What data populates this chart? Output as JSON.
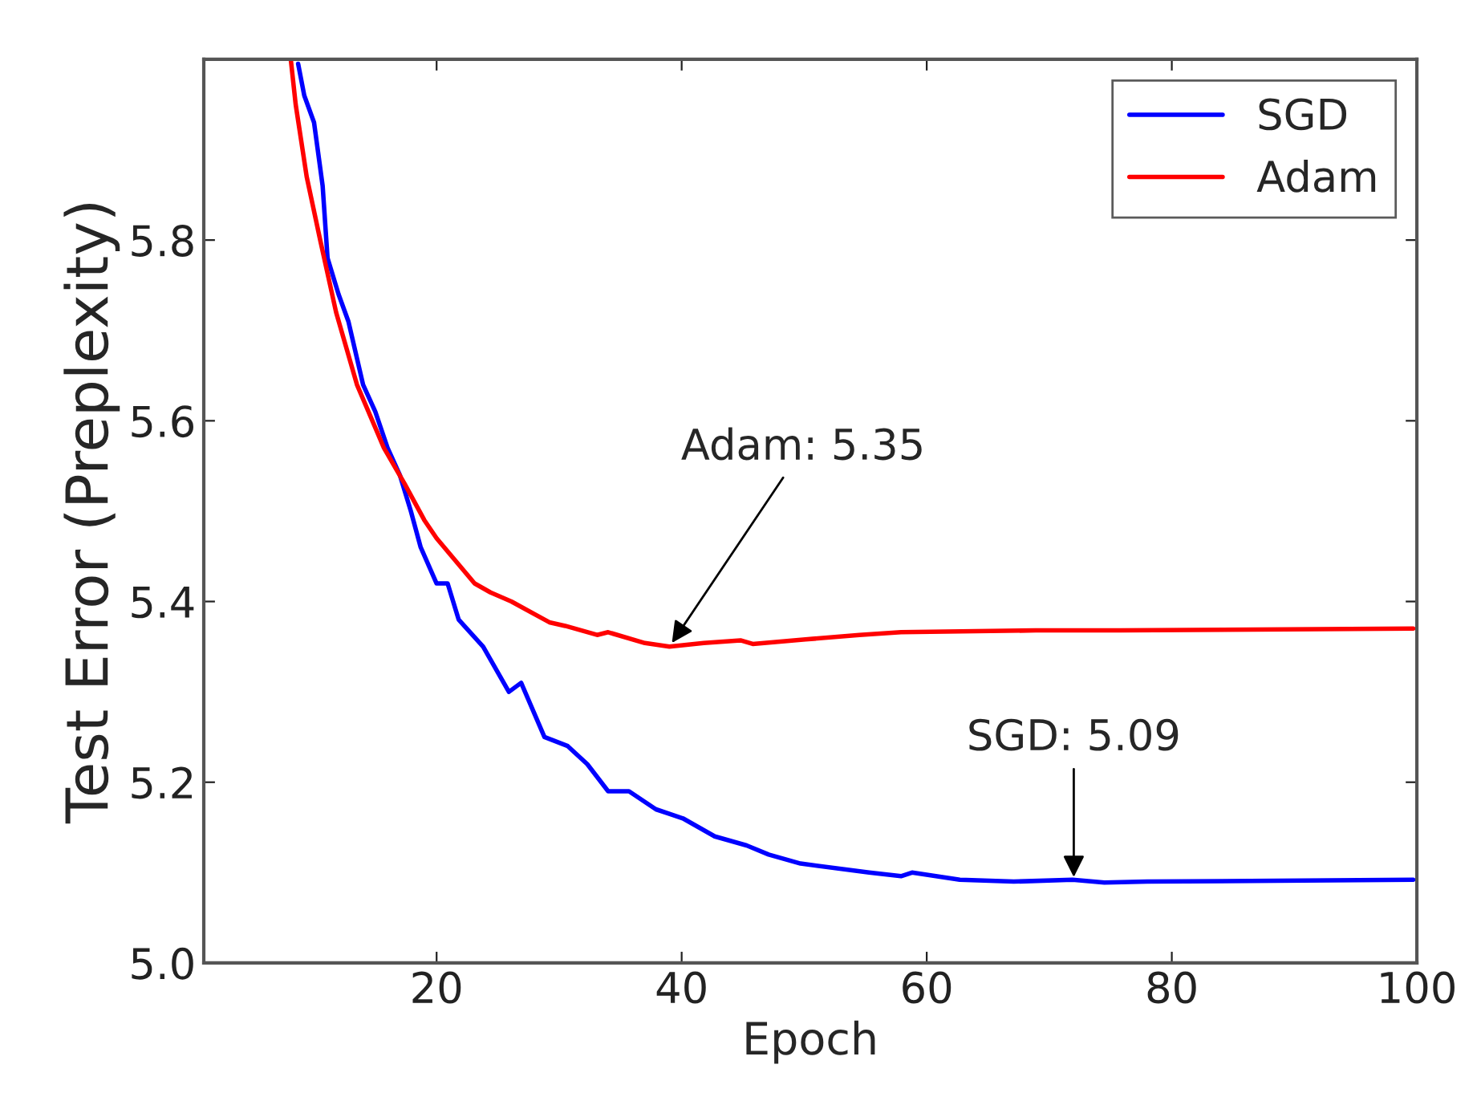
{
  "chart_data": {
    "type": "line",
    "xlabel": "Epoch",
    "ylabel": "Test Error (Preplexity)",
    "xlim": [
      1,
      100
    ],
    "xticks": [
      20,
      40,
      60,
      80,
      100
    ],
    "ylim": [
      5.0,
      6.0
    ],
    "yticks": [
      {
        "value": 5.0,
        "label": "5.0"
      },
      {
        "value": 5.2,
        "label": "5.2"
      },
      {
        "value": 5.4,
        "label": "5.4"
      },
      {
        "value": 5.6,
        "label": "5.6"
      },
      {
        "value": 5.8,
        "label": "5.8"
      }
    ],
    "grid": false,
    "legend": "top right",
    "marker": "none",
    "line_style": "solid",
    "series": [
      {
        "name": "SGD",
        "color": "#0000ff",
        "x": [
          8.7,
          9.2,
          10.0,
          10.7,
          11.1,
          12.0,
          12.8,
          14.0,
          15.0,
          16.0,
          17.0,
          17.9,
          18.7,
          20.0,
          20.9,
          21.8,
          23.8,
          25.9,
          26.9,
          28.8,
          30.7,
          32.3,
          34.0,
          35.7,
          37.9,
          40.1,
          42.7,
          45.3,
          47.1,
          49.7,
          55.3,
          57.9,
          58.8,
          62.7,
          67.1,
          71.9,
          74.5,
          78.0,
          99.7
        ],
        "values": [
          5.995,
          5.96,
          5.93,
          5.86,
          5.78,
          5.74,
          5.71,
          5.64,
          5.61,
          5.57,
          5.54,
          5.5,
          5.46,
          5.42,
          5.42,
          5.38,
          5.35,
          5.3,
          5.31,
          5.25,
          5.24,
          5.22,
          5.19,
          5.19,
          5.17,
          5.16,
          5.14,
          5.13,
          5.12,
          5.11,
          5.1,
          5.096,
          5.1,
          5.092,
          5.09,
          5.092,
          5.089,
          5.09,
          5.092
        ]
      },
      {
        "name": "Adam",
        "color": "#ff0000",
        "x": [
          8.1,
          8.5,
          9.4,
          10.5,
          11.8,
          13.5,
          15.7,
          17.4,
          19.0,
          20.0,
          23.1,
          24.4,
          26.1,
          29.2,
          30.5,
          33.1,
          34.0,
          37.0,
          39.0,
          41.8,
          44.8,
          45.8,
          50.1,
          54.5,
          57.9,
          68.9,
          75.8,
          99.7
        ],
        "values": [
          6.0,
          5.95,
          5.87,
          5.8,
          5.72,
          5.64,
          5.57,
          5.53,
          5.49,
          5.47,
          5.42,
          5.41,
          5.4,
          5.377,
          5.373,
          5.363,
          5.366,
          5.354,
          5.35,
          5.354,
          5.357,
          5.353,
          5.358,
          5.363,
          5.366,
          5.368,
          5.368,
          5.37
        ]
      }
    ],
    "annotations": [
      {
        "text": "Adam: 5.35",
        "x": 39.0,
        "y": 5.35
      },
      {
        "text": "SGD: 5.09",
        "x": 72.0,
        "y": 5.09
      }
    ]
  }
}
